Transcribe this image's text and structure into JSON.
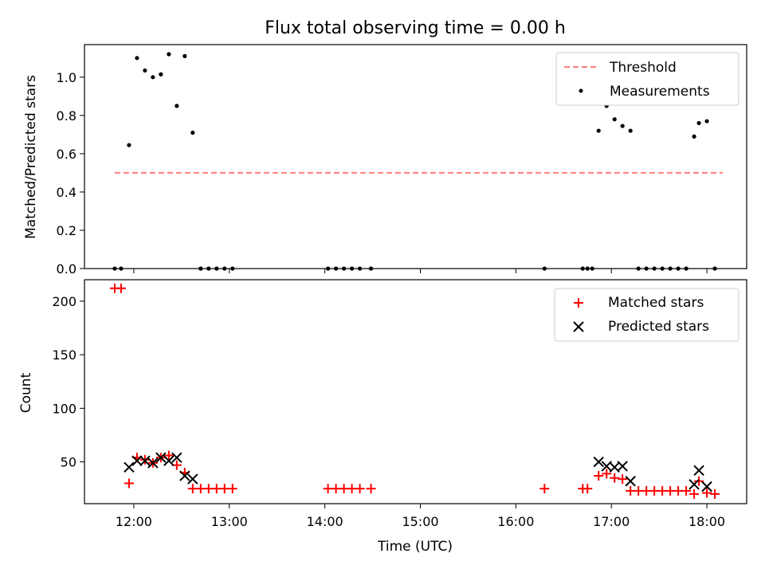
{
  "title": "Flux total observing time = 0.00 h",
  "xlabel": "Time (UTC)",
  "x_ticks": [
    "12:00",
    "13:00",
    "14:00",
    "15:00",
    "16:00",
    "17:00",
    "18:00"
  ],
  "chart_data": [
    {
      "type": "scatter",
      "ylabel": "Matched/Predicted stars",
      "xlim": [
        "11:29",
        "18:25"
      ],
      "ylim": [
        0,
        1.17
      ],
      "y_ticks": [
        "0.0",
        "0.2",
        "0.4",
        "0.6",
        "0.8",
        "1.0"
      ],
      "y_tick_values": [
        0,
        0.2,
        0.4,
        0.6,
        0.8,
        1.0
      ],
      "legend_position": "top-right",
      "legend": [
        "Threshold",
        "Measurements"
      ],
      "threshold": {
        "name": "Threshold",
        "color": "#ff7f7f",
        "style": "dashed",
        "y": 0.5,
        "x": [
          "11:48",
          "18:10"
        ]
      },
      "series": [
        {
          "name": "Measurements",
          "color": "#000000",
          "marker": "dot",
          "x": [
            "11:48",
            "11:52",
            "11:57",
            "12:02",
            "12:07",
            "12:12",
            "12:17",
            "12:22",
            "12:27",
            "12:32",
            "12:37",
            "12:42",
            "12:42",
            "12:47",
            "12:52",
            "12:57",
            "13:02",
            "14:02",
            "14:07",
            "14:12",
            "14:17",
            "14:22",
            "14:29",
            "16:18",
            "16:42",
            "16:45",
            "16:48",
            "16:52",
            "16:57",
            "17:02",
            "17:07",
            "17:12",
            "17:17",
            "17:22",
            "17:27",
            "17:32",
            "17:37",
            "17:42",
            "17:47",
            "17:52",
            "17:55",
            "18:00",
            "18:05"
          ],
          "y": [
            0,
            0,
            0.645,
            1.1,
            1.035,
            1.0,
            1.015,
            1.12,
            0.85,
            1.11,
            0.71,
            0,
            0,
            0,
            0,
            0,
            0,
            0,
            0,
            0,
            0,
            0,
            0,
            0,
            0,
            0,
            0,
            0.72,
            0.85,
            0.78,
            0.745,
            0.72,
            0,
            0,
            0,
            0,
            0,
            0,
            0,
            0.69,
            0.76,
            0.77,
            0
          ]
        }
      ]
    },
    {
      "type": "scatter",
      "ylabel": "Count",
      "xlim": [
        "11:29",
        "18:25"
      ],
      "ylim": [
        11,
        220
      ],
      "y_ticks": [
        "50",
        "100",
        "150",
        "200"
      ],
      "y_tick_values": [
        50,
        100,
        150,
        200
      ],
      "legend_position": "top-right",
      "legend": [
        "Matched stars",
        "Predicted stars"
      ],
      "series": [
        {
          "name": "Matched stars",
          "color": "#ff0000",
          "marker": "plus",
          "x": [
            "11:48",
            "11:52",
            "11:57",
            "12:02",
            "12:07",
            "12:12",
            "12:17",
            "12:22",
            "12:27",
            "12:32",
            "12:37",
            "12:42",
            "12:47",
            "12:52",
            "12:57",
            "13:02",
            "14:02",
            "14:07",
            "14:12",
            "14:17",
            "14:22",
            "14:29",
            "16:18",
            "16:42",
            "16:45",
            "16:52",
            "16:57",
            "17:02",
            "17:07",
            "17:12",
            "17:17",
            "17:22",
            "17:27",
            "17:32",
            "17:37",
            "17:42",
            "17:47",
            "17:52",
            "17:55",
            "18:00",
            "18:05"
          ],
          "y": [
            212,
            212,
            30,
            54,
            52,
            49,
            54,
            56,
            47,
            40,
            25,
            25,
            25,
            25,
            25,
            25,
            25,
            25,
            25,
            25,
            25,
            25,
            25,
            25,
            25,
            37,
            39,
            35,
            34,
            23,
            23,
            23,
            23,
            23,
            23,
            23,
            23,
            20,
            32,
            21,
            20
          ]
        },
        {
          "name": "Predicted stars",
          "color": "#000000",
          "marker": "x",
          "x": [
            "11:57",
            "12:02",
            "12:07",
            "12:12",
            "12:17",
            "12:22",
            "12:27",
            "12:32",
            "12:37",
            "16:52",
            "16:57",
            "17:02",
            "17:07",
            "17:12",
            "17:52",
            "17:55",
            "18:00"
          ],
          "y": [
            45,
            51,
            51,
            49,
            54,
            51,
            54,
            37,
            34,
            50,
            46,
            45,
            46,
            32,
            29,
            42,
            27
          ]
        }
      ]
    }
  ]
}
